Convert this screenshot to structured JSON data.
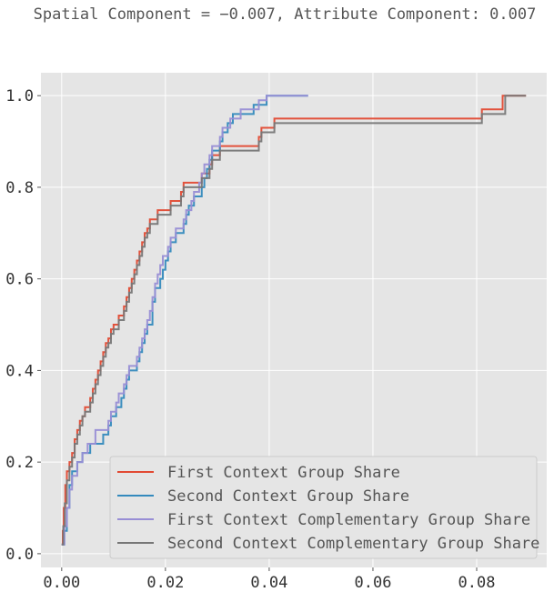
{
  "chart_data": {
    "type": "line",
    "title": "Spatial Component = −0.007, Attribute Component: 0.007",
    "xlabel": "",
    "ylabel": "",
    "xlim": [
      -0.004,
      0.0935
    ],
    "ylim": [
      -0.03,
      1.05
    ],
    "x_ticks": [
      0.0,
      0.02,
      0.04,
      0.06,
      0.08
    ],
    "x_tick_labels": [
      "0.00",
      "0.02",
      "0.04",
      "0.06",
      "0.08"
    ],
    "y_ticks": [
      0.0,
      0.2,
      0.4,
      0.6,
      0.8,
      1.0
    ],
    "y_tick_labels": [
      "0.0",
      "0.2",
      "0.4",
      "0.6",
      "0.8",
      "1.0"
    ],
    "grid": true,
    "legend_position": "lower-right",
    "step": true,
    "series": [
      {
        "name": "First Context Group Share",
        "color": "#e24a33",
        "points": [
          [
            0.0,
            0.02
          ],
          [
            0.0002,
            0.05
          ],
          [
            0.0004,
            0.1
          ],
          [
            0.0007,
            0.15
          ],
          [
            0.001,
            0.18
          ],
          [
            0.0015,
            0.2
          ],
          [
            0.002,
            0.22
          ],
          [
            0.0025,
            0.25
          ],
          [
            0.003,
            0.27
          ],
          [
            0.0035,
            0.29
          ],
          [
            0.004,
            0.3
          ],
          [
            0.0045,
            0.32
          ],
          [
            0.0055,
            0.34
          ],
          [
            0.006,
            0.36
          ],
          [
            0.0065,
            0.38
          ],
          [
            0.007,
            0.4
          ],
          [
            0.0075,
            0.42
          ],
          [
            0.008,
            0.44
          ],
          [
            0.0085,
            0.46
          ],
          [
            0.009,
            0.47
          ],
          [
            0.0095,
            0.49
          ],
          [
            0.01,
            0.5
          ],
          [
            0.011,
            0.52
          ],
          [
            0.012,
            0.54
          ],
          [
            0.0125,
            0.56
          ],
          [
            0.013,
            0.58
          ],
          [
            0.0135,
            0.6
          ],
          [
            0.014,
            0.62
          ],
          [
            0.0145,
            0.64
          ],
          [
            0.015,
            0.66
          ],
          [
            0.0155,
            0.68
          ],
          [
            0.016,
            0.7
          ],
          [
            0.0165,
            0.71
          ],
          [
            0.017,
            0.73
          ],
          [
            0.0185,
            0.75
          ],
          [
            0.021,
            0.77
          ],
          [
            0.023,
            0.79
          ],
          [
            0.0235,
            0.81
          ],
          [
            0.027,
            0.83
          ],
          [
            0.0285,
            0.85
          ],
          [
            0.029,
            0.87
          ],
          [
            0.0305,
            0.89
          ],
          [
            0.038,
            0.91
          ],
          [
            0.0385,
            0.93
          ],
          [
            0.041,
            0.95
          ],
          [
            0.081,
            0.97
          ],
          [
            0.085,
            1.0
          ],
          [
            0.0895,
            1.0
          ]
        ]
      },
      {
        "name": "Second Context Group Share",
        "color": "#348abd",
        "points": [
          [
            0.0,
            0.02
          ],
          [
            0.0005,
            0.05
          ],
          [
            0.001,
            0.1
          ],
          [
            0.0015,
            0.15
          ],
          [
            0.002,
            0.18
          ],
          [
            0.003,
            0.2
          ],
          [
            0.004,
            0.22
          ],
          [
            0.0055,
            0.24
          ],
          [
            0.008,
            0.26
          ],
          [
            0.009,
            0.28
          ],
          [
            0.0095,
            0.3
          ],
          [
            0.0105,
            0.32
          ],
          [
            0.0115,
            0.34
          ],
          [
            0.012,
            0.36
          ],
          [
            0.0125,
            0.38
          ],
          [
            0.013,
            0.4
          ],
          [
            0.0145,
            0.42
          ],
          [
            0.015,
            0.44
          ],
          [
            0.0155,
            0.46
          ],
          [
            0.016,
            0.48
          ],
          [
            0.0165,
            0.5
          ],
          [
            0.0175,
            0.52
          ],
          [
            0.0175,
            0.55
          ],
          [
            0.018,
            0.58
          ],
          [
            0.019,
            0.6
          ],
          [
            0.0195,
            0.62
          ],
          [
            0.02,
            0.64
          ],
          [
            0.0205,
            0.66
          ],
          [
            0.021,
            0.68
          ],
          [
            0.022,
            0.7
          ],
          [
            0.0235,
            0.72
          ],
          [
            0.024,
            0.74
          ],
          [
            0.0245,
            0.76
          ],
          [
            0.0255,
            0.78
          ],
          [
            0.027,
            0.8
          ],
          [
            0.0275,
            0.82
          ],
          [
            0.028,
            0.84
          ],
          [
            0.0285,
            0.86
          ],
          [
            0.029,
            0.88
          ],
          [
            0.0305,
            0.9
          ],
          [
            0.031,
            0.92
          ],
          [
            0.032,
            0.94
          ],
          [
            0.033,
            0.96
          ],
          [
            0.037,
            0.98
          ],
          [
            0.0395,
            1.0
          ],
          [
            0.0475,
            1.0
          ]
        ]
      },
      {
        "name": "First Context Complementary Group Share",
        "color": "#988ed5",
        "points": [
          [
            0.0,
            0.02
          ],
          [
            0.0005,
            0.06
          ],
          [
            0.001,
            0.1
          ],
          [
            0.0015,
            0.14
          ],
          [
            0.002,
            0.17
          ],
          [
            0.003,
            0.2
          ],
          [
            0.004,
            0.22
          ],
          [
            0.005,
            0.24
          ],
          [
            0.0065,
            0.27
          ],
          [
            0.009,
            0.29
          ],
          [
            0.0095,
            0.31
          ],
          [
            0.0105,
            0.33
          ],
          [
            0.011,
            0.35
          ],
          [
            0.012,
            0.37
          ],
          [
            0.0125,
            0.39
          ],
          [
            0.013,
            0.41
          ],
          [
            0.0145,
            0.43
          ],
          [
            0.015,
            0.45
          ],
          [
            0.0155,
            0.47
          ],
          [
            0.016,
            0.49
          ],
          [
            0.0165,
            0.51
          ],
          [
            0.017,
            0.53
          ],
          [
            0.0175,
            0.56
          ],
          [
            0.018,
            0.59
          ],
          [
            0.0185,
            0.61
          ],
          [
            0.019,
            0.63
          ],
          [
            0.0195,
            0.65
          ],
          [
            0.0205,
            0.67
          ],
          [
            0.021,
            0.69
          ],
          [
            0.022,
            0.71
          ],
          [
            0.0235,
            0.73
          ],
          [
            0.024,
            0.75
          ],
          [
            0.025,
            0.77
          ],
          [
            0.0255,
            0.79
          ],
          [
            0.0265,
            0.81
          ],
          [
            0.027,
            0.83
          ],
          [
            0.0275,
            0.85
          ],
          [
            0.0285,
            0.87
          ],
          [
            0.029,
            0.89
          ],
          [
            0.0305,
            0.91
          ],
          [
            0.031,
            0.93
          ],
          [
            0.0325,
            0.95
          ],
          [
            0.0345,
            0.97
          ],
          [
            0.038,
            0.99
          ],
          [
            0.0395,
            1.0
          ],
          [
            0.0475,
            1.0
          ]
        ]
      },
      {
        "name": "Second Context Complementary Group Share",
        "color": "#777777",
        "points": [
          [
            0.0,
            0.02
          ],
          [
            0.0003,
            0.06
          ],
          [
            0.0006,
            0.11
          ],
          [
            0.001,
            0.16
          ],
          [
            0.0015,
            0.19
          ],
          [
            0.002,
            0.21
          ],
          [
            0.0025,
            0.24
          ],
          [
            0.003,
            0.26
          ],
          [
            0.0035,
            0.28
          ],
          [
            0.004,
            0.3
          ],
          [
            0.0045,
            0.31
          ],
          [
            0.0055,
            0.33
          ],
          [
            0.006,
            0.35
          ],
          [
            0.0065,
            0.37
          ],
          [
            0.007,
            0.39
          ],
          [
            0.0075,
            0.41
          ],
          [
            0.008,
            0.43
          ],
          [
            0.0085,
            0.45
          ],
          [
            0.009,
            0.46
          ],
          [
            0.0095,
            0.48
          ],
          [
            0.01,
            0.49
          ],
          [
            0.011,
            0.51
          ],
          [
            0.012,
            0.53
          ],
          [
            0.0125,
            0.55
          ],
          [
            0.013,
            0.57
          ],
          [
            0.0135,
            0.59
          ],
          [
            0.014,
            0.61
          ],
          [
            0.0145,
            0.63
          ],
          [
            0.015,
            0.65
          ],
          [
            0.0155,
            0.67
          ],
          [
            0.016,
            0.69
          ],
          [
            0.0165,
            0.7
          ],
          [
            0.017,
            0.72
          ],
          [
            0.0185,
            0.74
          ],
          [
            0.021,
            0.76
          ],
          [
            0.023,
            0.78
          ],
          [
            0.0235,
            0.8
          ],
          [
            0.027,
            0.82
          ],
          [
            0.0285,
            0.84
          ],
          [
            0.029,
            0.86
          ],
          [
            0.0305,
            0.88
          ],
          [
            0.038,
            0.9
          ],
          [
            0.0385,
            0.92
          ],
          [
            0.041,
            0.94
          ],
          [
            0.081,
            0.96
          ],
          [
            0.0855,
            1.0
          ],
          [
            0.0895,
            1.0
          ]
        ]
      }
    ]
  }
}
